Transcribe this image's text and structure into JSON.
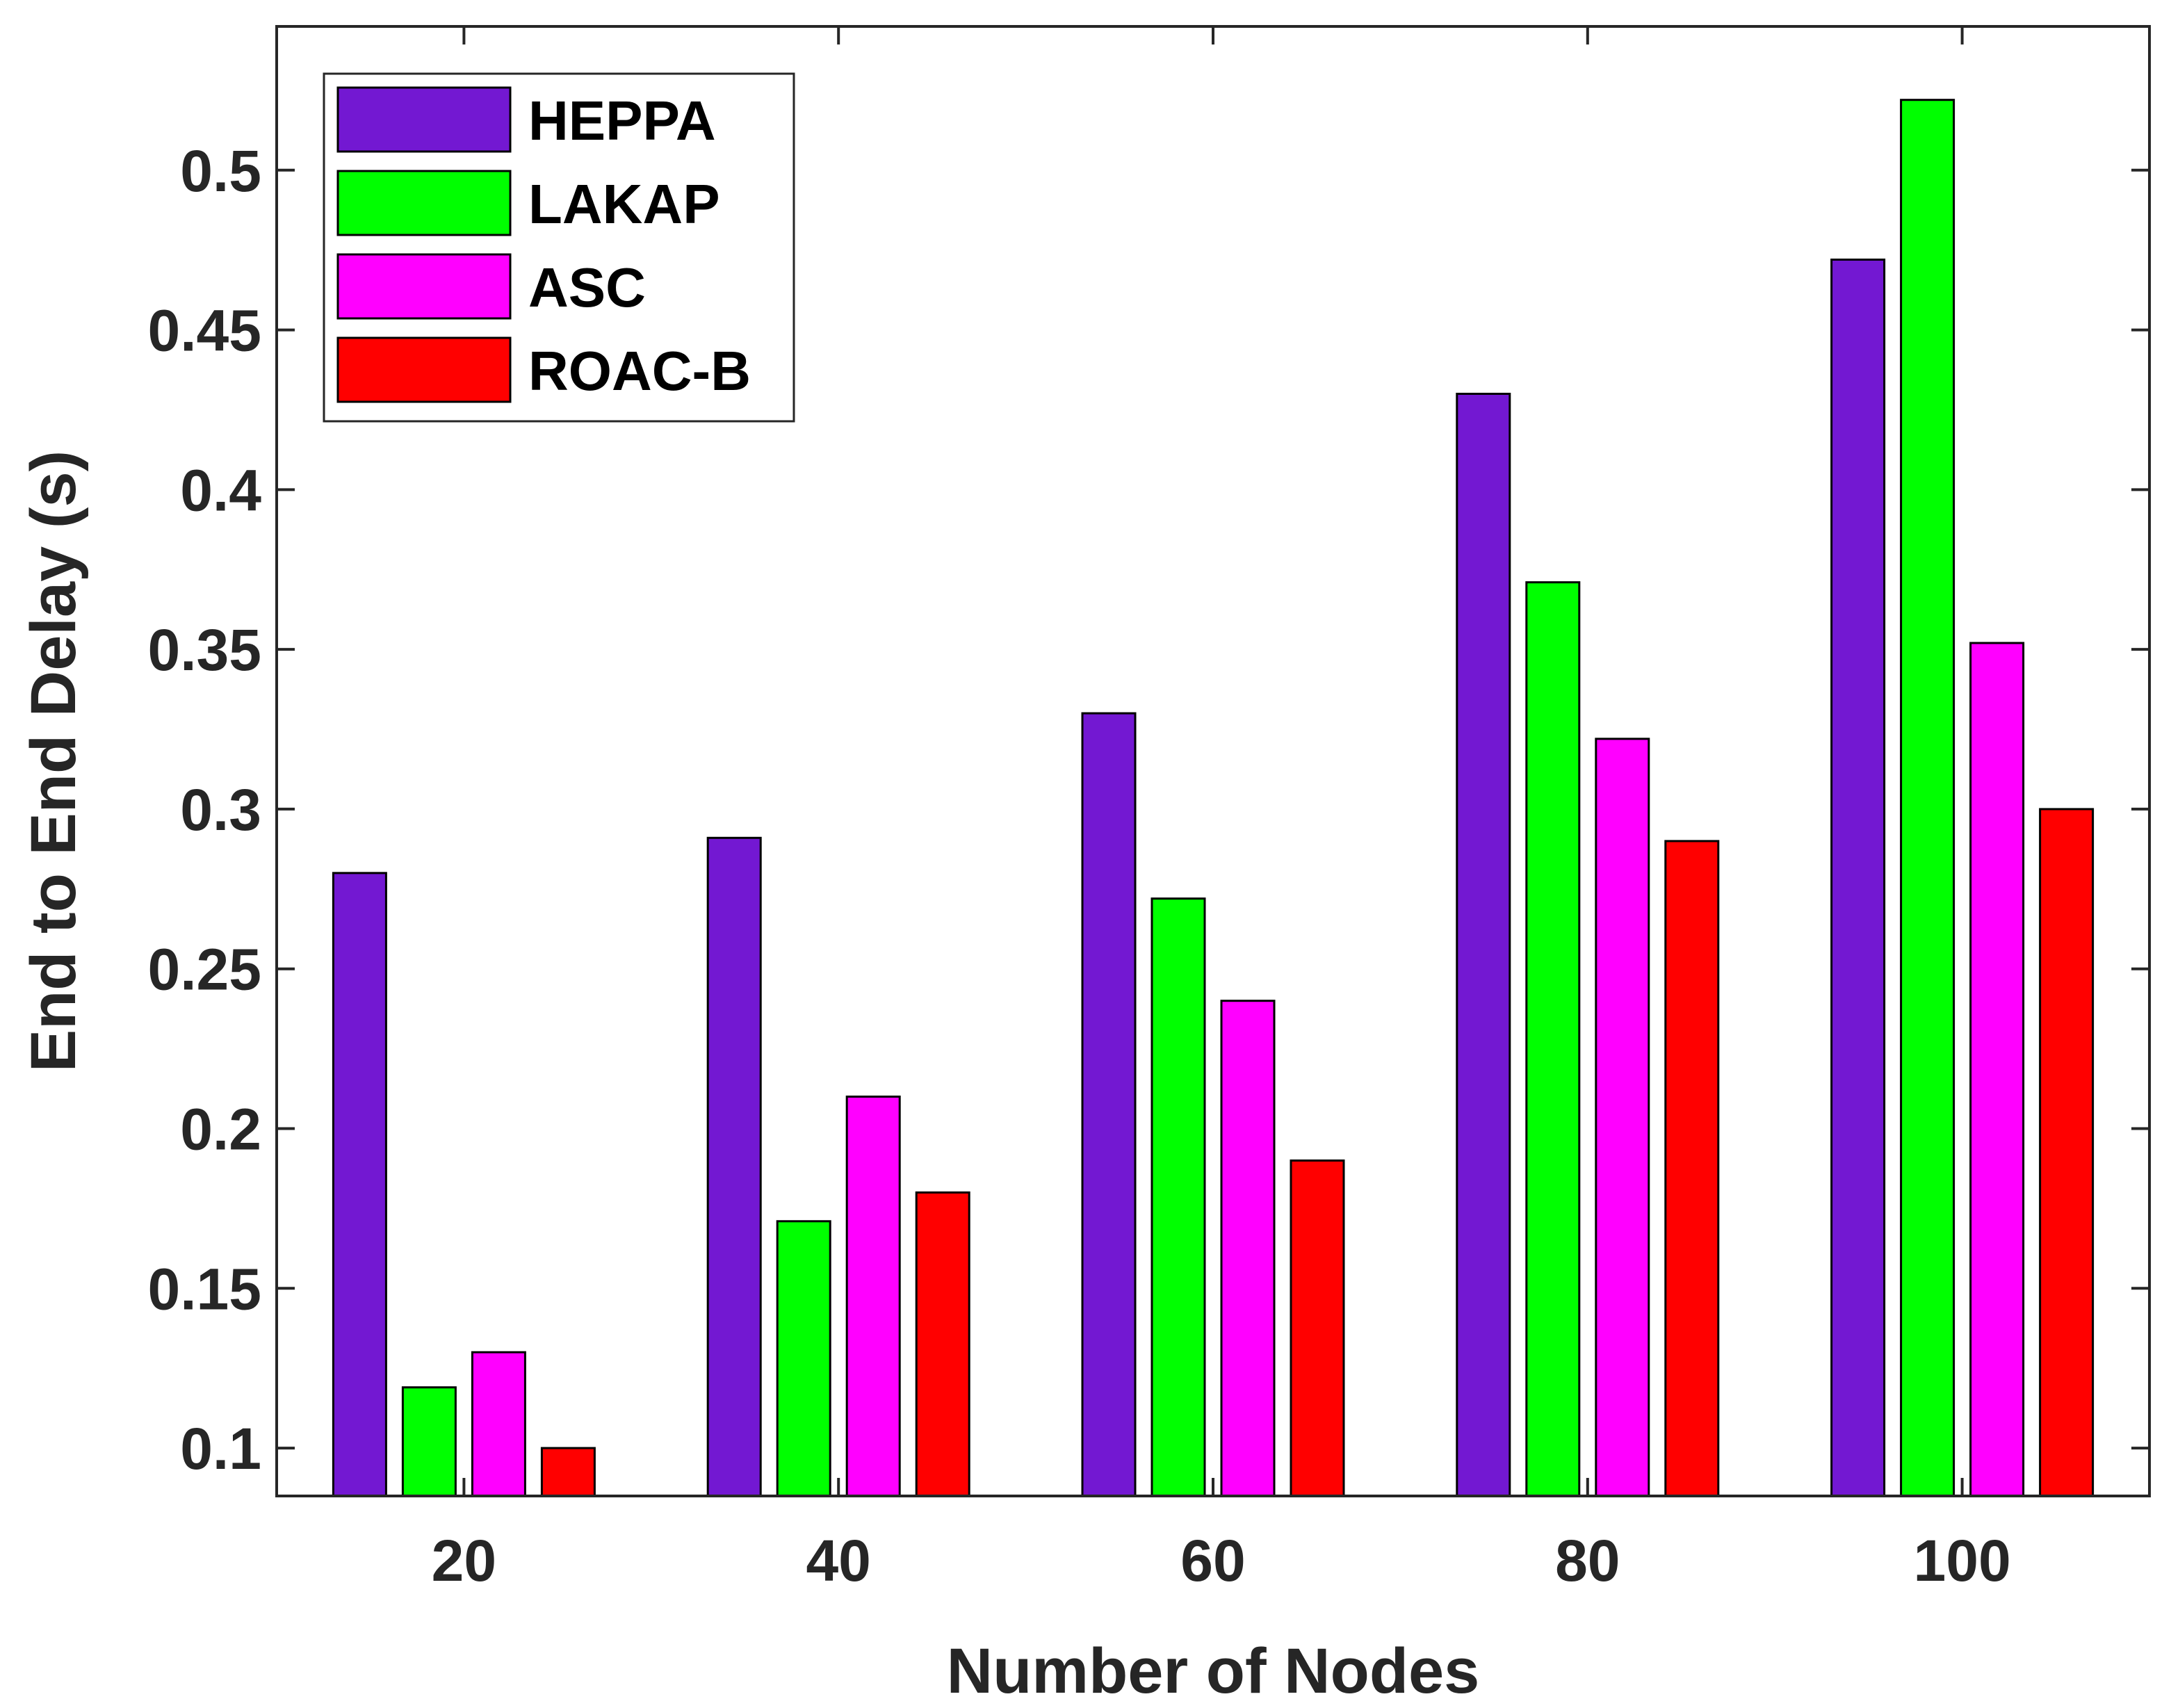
{
  "chart_data": {
    "type": "bar",
    "title": "",
    "xlabel": "Number of Nodes",
    "ylabel": "End to End Delay (s)",
    "categories": [
      "20",
      "40",
      "60",
      "80",
      "100"
    ],
    "ylim": [
      0.085,
      0.545
    ],
    "yticks": [
      0.1,
      0.15,
      0.2,
      0.25,
      0.3,
      0.35,
      0.4,
      0.45,
      0.5
    ],
    "ytick_labels": [
      "0.1",
      "0.15",
      "0.2",
      "0.25",
      "0.3",
      "0.35",
      "0.4",
      "0.45",
      "0.5"
    ],
    "grid": false,
    "legend_position": "top-left",
    "series": [
      {
        "name": "HEPPA",
        "color": "#7318d2",
        "values": [
          0.28,
          0.291,
          0.33,
          0.43,
          0.472
        ]
      },
      {
        "name": "LAKAP",
        "color": "#00ff00",
        "values": [
          0.119,
          0.171,
          0.272,
          0.371,
          0.522
        ]
      },
      {
        "name": "ASC",
        "color": "#ff00ff",
        "values": [
          0.13,
          0.21,
          0.24,
          0.322,
          0.352
        ]
      },
      {
        "name": "ROAC-B",
        "color": "#ff0000",
        "values": [
          0.1,
          0.18,
          0.19,
          0.29,
          0.3
        ]
      }
    ]
  }
}
